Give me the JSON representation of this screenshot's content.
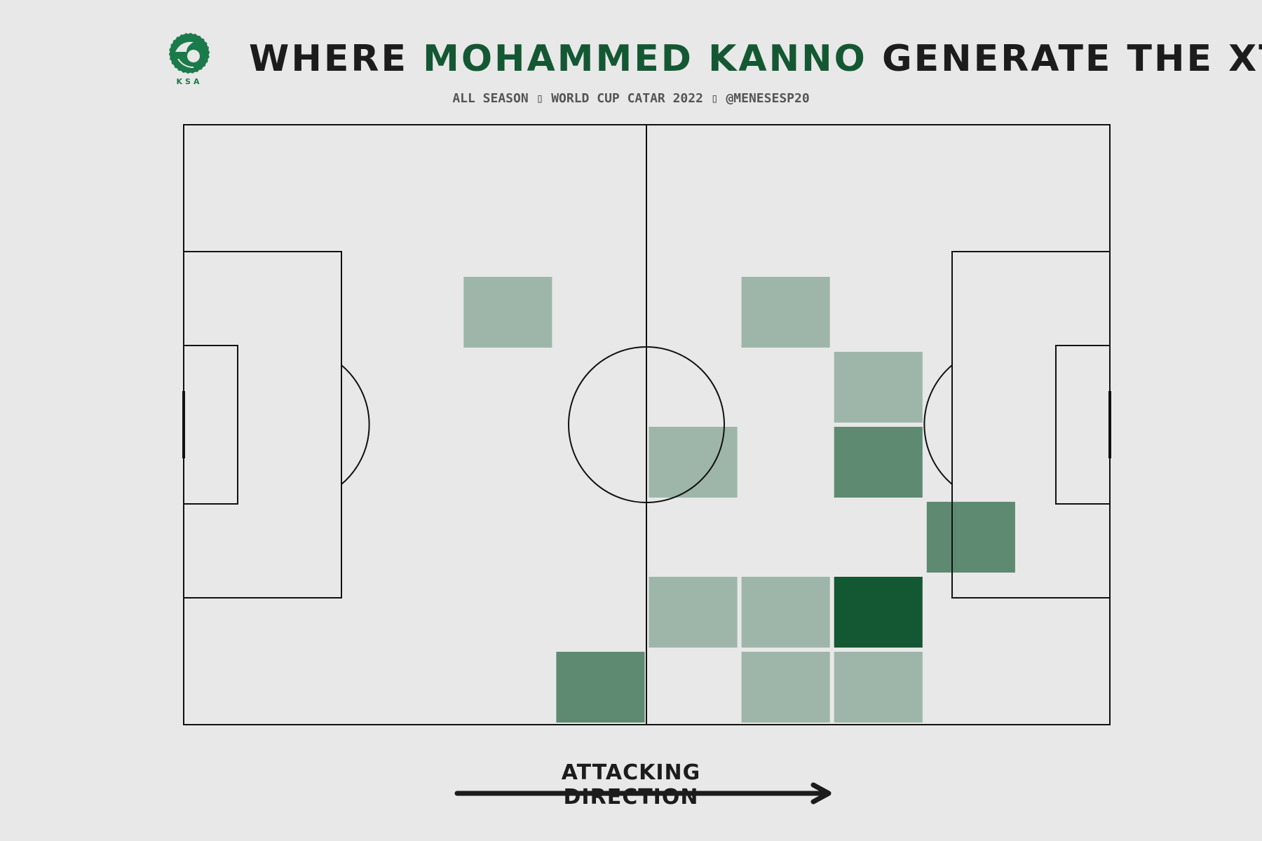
{
  "header": {
    "title_prefix": "WHERE ",
    "title_highlight": "MOHAMMED KANNO",
    "title_suffix": " GENERATE THE XT",
    "subtitle": "ALL SEASON ▯ WORLD CUP CATAR 2022 ▯ @MENESESP20"
  },
  "logo": {
    "name": "saff-crest-icon",
    "text": "KSA",
    "color": "#1a7a4a"
  },
  "footer": {
    "direction_label": "ATTACKING DIRECTION",
    "arrow_icon": "arrow-right-icon"
  },
  "colors": {
    "background": "#e8e8e8",
    "line": "#111111",
    "highlight": "#145833",
    "cell": "#145833"
  },
  "chart_data": {
    "type": "heatmap",
    "pitch": {
      "length": 120,
      "width": 80,
      "bins_x": 10,
      "bins_y": 8
    },
    "cells": [
      {
        "col": 3,
        "row": 2,
        "level": 1
      },
      {
        "col": 6,
        "row": 2,
        "level": 1
      },
      {
        "col": 7,
        "row": 3,
        "level": 1
      },
      {
        "col": 5,
        "row": 4,
        "level": 1
      },
      {
        "col": 7,
        "row": 4,
        "level": 2
      },
      {
        "col": 8,
        "row": 5,
        "level": 2
      },
      {
        "col": 5,
        "row": 6,
        "level": 1
      },
      {
        "col": 6,
        "row": 6,
        "level": 1
      },
      {
        "col": 7,
        "row": 6,
        "level": 3
      },
      {
        "col": 4,
        "row": 7,
        "level": 2
      },
      {
        "col": 6,
        "row": 7,
        "level": 1
      },
      {
        "col": 7,
        "row": 7,
        "level": 1
      }
    ],
    "levels": {
      "1": 0.35,
      "2": 0.65,
      "3": 1.0
    }
  }
}
